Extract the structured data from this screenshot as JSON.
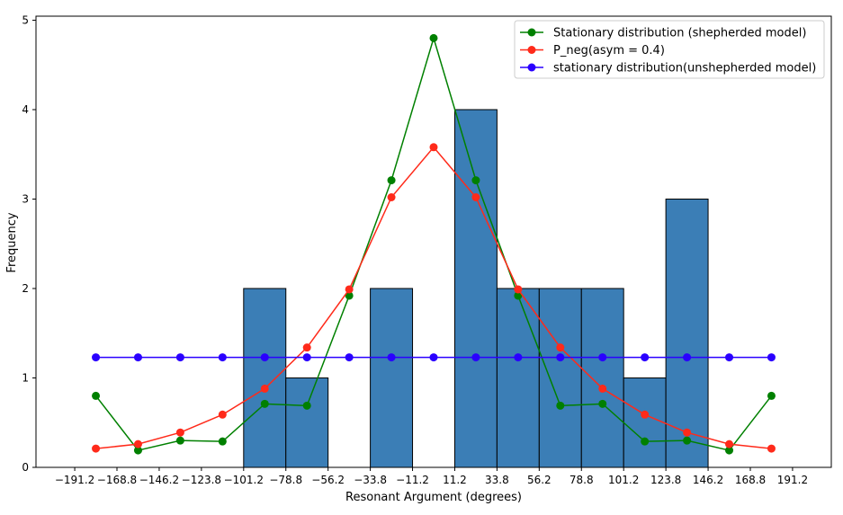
{
  "chart_data": {
    "type": "bar+line",
    "title": "",
    "xlabel": "Resonant Argument (degrees)",
    "ylabel": "Frequency",
    "xlim": [
      -211.9,
      211.9
    ],
    "ylim": [
      0,
      5.045
    ],
    "grid": false,
    "legend_position": "top-right",
    "x_ticks": [
      -191.25,
      -168.75,
      -146.25,
      -123.75,
      -101.25,
      -78.75,
      -56.25,
      -33.75,
      -11.25,
      11.25,
      33.75,
      56.25,
      78.75,
      101.25,
      123.75,
      146.25,
      168.75,
      191.25
    ],
    "x_tick_labels": [
      "−191.2",
      "−168.8",
      "−146.2",
      "−123.8",
      "−101.2",
      "−78.8",
      "−56.2",
      "−33.8",
      "−11.2",
      "11.2",
      "33.8",
      "56.2",
      "78.8",
      "101.2",
      "123.8",
      "146.2",
      "168.8",
      "191.2"
    ],
    "y_ticks": [
      0,
      1,
      2,
      3,
      4,
      5
    ],
    "y_tick_labels": [
      "0",
      "1",
      "2",
      "3",
      "4",
      "5"
    ],
    "histogram": {
      "color": "#3b7eb6",
      "bin_edges": [
        -101.25,
        -78.75,
        -56.25,
        -33.75,
        -11.25,
        11.25,
        33.75,
        56.25,
        78.75,
        101.25,
        123.75,
        146.25
      ],
      "counts": [
        2,
        1,
        0,
        2,
        0,
        4,
        2,
        2,
        2,
        1,
        3
      ]
    },
    "x": [
      -180,
      -157.5,
      -135,
      -112.5,
      -90,
      -67.5,
      -45,
      -22.5,
      0,
      22.5,
      45,
      67.5,
      90,
      112.5,
      135,
      157.5,
      180
    ],
    "series": [
      {
        "name": "Stationary distribution (shepherded model)",
        "color": "#008000",
        "values": [
          0.8,
          0.19,
          0.3,
          0.29,
          0.71,
          0.69,
          1.92,
          3.21,
          4.8,
          3.21,
          1.92,
          0.69,
          0.71,
          0.29,
          0.3,
          0.19,
          0.8
        ]
      },
      {
        "name": "P_neg(asym = 0.4)",
        "color": "#ff2a1a",
        "values": [
          0.21,
          0.26,
          0.39,
          0.59,
          0.88,
          1.34,
          1.99,
          3.02,
          3.58,
          3.02,
          1.99,
          1.34,
          0.88,
          0.59,
          0.39,
          0.26,
          0.21
        ]
      },
      {
        "name": "stationary distribution(unshepherded model)",
        "color": "#2a00ff",
        "values": [
          1.23,
          1.23,
          1.23,
          1.23,
          1.23,
          1.23,
          1.23,
          1.23,
          1.23,
          1.23,
          1.23,
          1.23,
          1.23,
          1.23,
          1.23,
          1.23,
          1.23
        ]
      }
    ]
  }
}
